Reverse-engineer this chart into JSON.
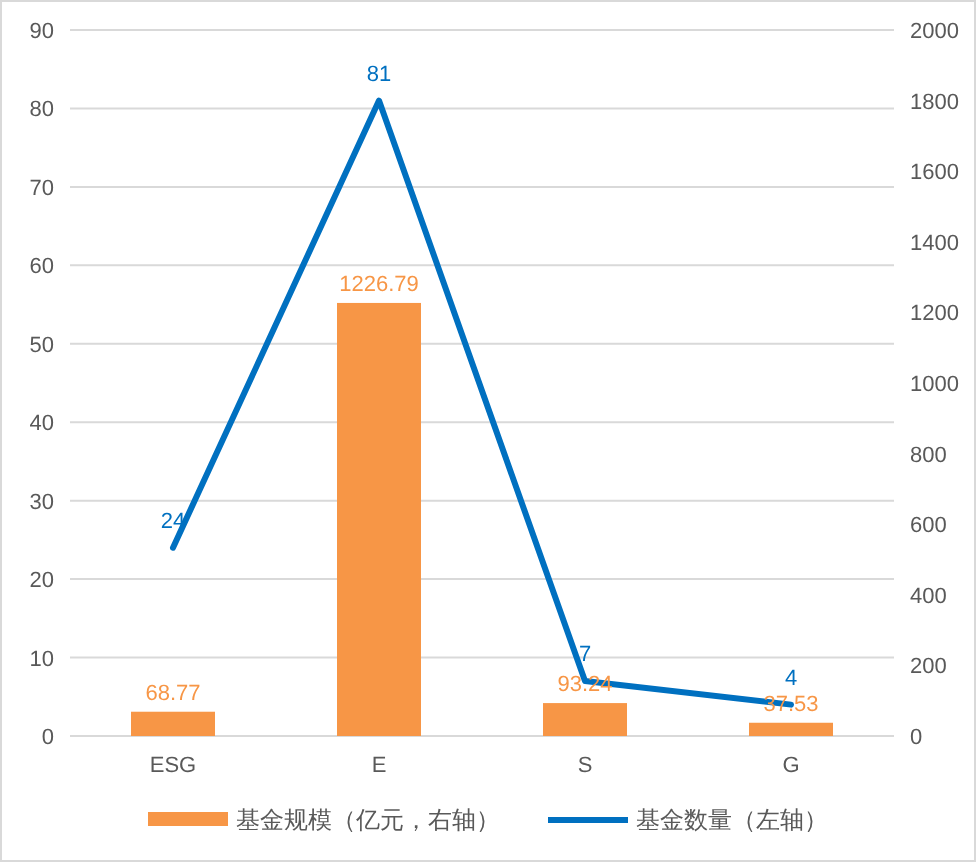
{
  "chart_data": {
    "type": "bar",
    "categories": [
      "ESG",
      "E",
      "S",
      "G"
    ],
    "series": [
      {
        "name": "基金规模（亿元，右轴）",
        "axis": "y2",
        "color": "#f79646",
        "values": [
          68.77,
          1226.79,
          93.24,
          37.53
        ]
      },
      {
        "name": "基金数量（左轴）",
        "type": "line",
        "color": "#0070c0",
        "values": [
          24,
          81,
          7,
          4
        ]
      }
    ],
    "ylim": [
      0,
      90
    ],
    "yticks": [
      0,
      10,
      20,
      30,
      40,
      50,
      60,
      70,
      80,
      90
    ],
    "y2lim": [
      0,
      2000
    ],
    "y2ticks": [
      0,
      200,
      400,
      600,
      800,
      1000,
      1200,
      1400,
      1600,
      1800,
      2000
    ],
    "grid": "y",
    "legend": "bottom",
    "data_labels": true,
    "line_style": "solid"
  }
}
